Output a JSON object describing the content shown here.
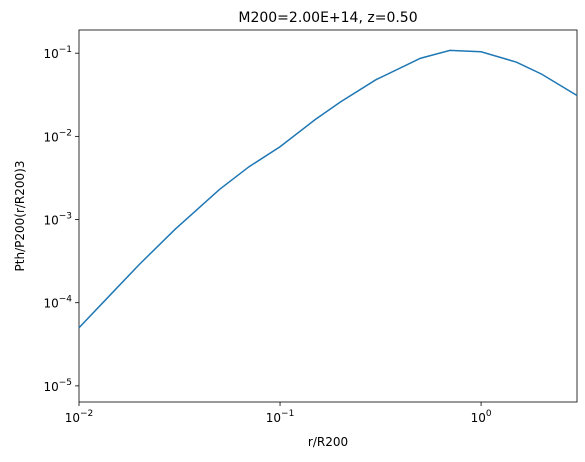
{
  "chart_data": {
    "type": "line",
    "title": "M200=2.00E+14, z=0.50",
    "x_label": "r/R200",
    "y_label": "Pth/P200(r/R200)3",
    "x_log": true,
    "y_log": true,
    "x": [
      0.01,
      0.015,
      0.02,
      0.03,
      0.05,
      0.07,
      0.1,
      0.15,
      0.2,
      0.3,
      0.5,
      0.7,
      1,
      1.5,
      2,
      3
    ],
    "series": [
      {
        "color": "#1f77b4",
        "values": [
          5e-05,
          0.00014,
          0.00029,
          0.00076,
          0.0023,
          0.0043,
          0.0075,
          0.016,
          0.026,
          0.048,
          0.087,
          0.108,
          0.104,
          0.078,
          0.056,
          0.031
        ]
      }
    ],
    "xlim": [
      0.01,
      3
    ],
    "ylim": [
      6.4e-06,
      0.19
    ],
    "xticks": [
      {
        "value": 0.01,
        "label": "10−2"
      },
      {
        "value": 0.1,
        "label": "10−1"
      },
      {
        "value": 1,
        "label": "100"
      }
    ],
    "yticks": [
      {
        "value": 1e-05,
        "label": "10−5"
      },
      {
        "value": 0.0001,
        "label": "10−4"
      },
      {
        "value": 0.001,
        "label": "10−3"
      },
      {
        "value": 0.01,
        "label": "10−2"
      },
      {
        "value": 0.1,
        "label": "10−1"
      }
    ]
  }
}
